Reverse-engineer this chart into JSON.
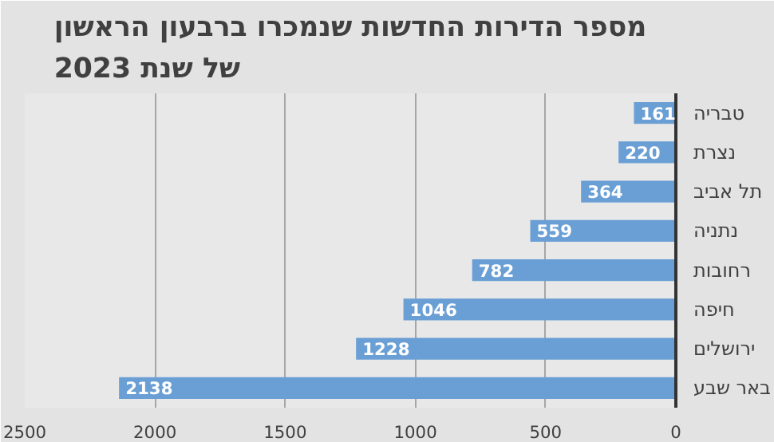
{
  "chart_data": {
    "type": "bar",
    "orientation": "horizontal",
    "title": "מספר הדירות החדשות שנמכרו ברבעון הראשון\nשל שנת 2023",
    "categories": [
      "טבריה",
      "נצרת",
      "תל אביב",
      "נתניה",
      "רחובות",
      "חיפה",
      "ירושלים",
      "באר שבע"
    ],
    "values": [
      161,
      220,
      364,
      559,
      782,
      1046,
      1228,
      2138
    ],
    "color": "#6a9fd5",
    "xlim": [
      2500,
      0
    ],
    "xticks": [
      0,
      500,
      1000,
      1500,
      2000,
      2500
    ],
    "grid": "x",
    "data_labels": true
  }
}
